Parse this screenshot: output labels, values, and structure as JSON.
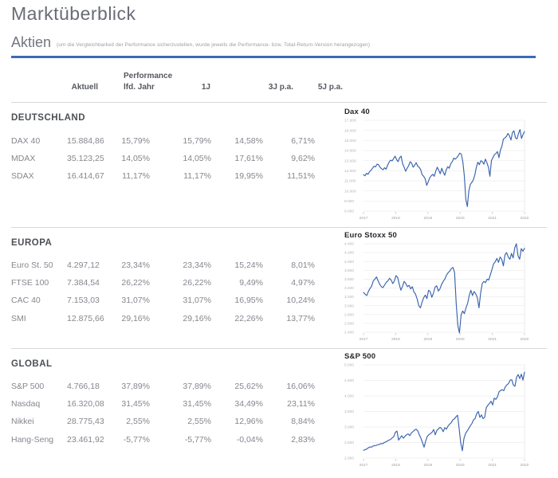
{
  "page": {
    "title": "Marktüberblick"
  },
  "aktien": {
    "title": "Aktien",
    "note": "(um die Vergleichbarkeit der Performance sicherzustellen, wurde jeweils die Performance- bzw. Total-Return-Version herangezogen)"
  },
  "table": {
    "group_header": "Performance",
    "columns": {
      "aktuell": "Aktuell",
      "lfd_jahr": "lfd. Jahr",
      "one_j": "1J",
      "three_j": "3J p.a.",
      "five_j": "5J p.a."
    }
  },
  "sections": [
    {
      "name": "DEUTSCHLAND",
      "rows": [
        {
          "label": "DAX 40",
          "values": [
            "15.884,86",
            "15,79%",
            "15,79%",
            "14,58%",
            "6,71%"
          ]
        },
        {
          "label": "MDAX",
          "values": [
            "35.123,25",
            "14,05%",
            "14,05%",
            "17,61%",
            "9,62%"
          ]
        },
        {
          "label": "SDAX",
          "values": [
            "16.414,67",
            "11,17%",
            "11,17%",
            "19,95%",
            "11,51%"
          ]
        }
      ]
    },
    {
      "name": "EUROPA",
      "rows": [
        {
          "label": "Euro St. 50",
          "values": [
            "4.297,12",
            "23,34%",
            "23,34%",
            "15,24%",
            "8,01%"
          ]
        },
        {
          "label": "FTSE 100",
          "values": [
            "7.384,54",
            "26,22%",
            "26,22%",
            "9,49%",
            "4,97%"
          ]
        },
        {
          "label": "CAC 40",
          "values": [
            "7.153,03",
            "31,07%",
            "31,07%",
            "16,95%",
            "10,24%"
          ]
        },
        {
          "label": "SMI",
          "values": [
            "12.875,66",
            "29,16%",
            "29,16%",
            "22,26%",
            "13,77%"
          ]
        }
      ]
    },
    {
      "name": "GLOBAL",
      "rows": [
        {
          "label": "S&P 500",
          "values": [
            "4.766,18",
            "37,89%",
            "37,89%",
            "25,62%",
            "16,06%"
          ]
        },
        {
          "label": "Nasdaq",
          "values": [
            "16.320,08",
            "31,45%",
            "31,45%",
            "34,49%",
            "23,11%"
          ]
        },
        {
          "label": "Nikkei",
          "values": [
            "28.775,43",
            "2,55%",
            "2,55%",
            "12,96%",
            "8,84%"
          ]
        },
        {
          "label": "Hang-Seng",
          "values": [
            "23.461,92",
            "-5,77%",
            "-5,77%",
            "-0,04%",
            "2,83%"
          ]
        }
      ]
    }
  ],
  "colors": {
    "accent_rule": "#3e6ab3",
    "chart_line": "#3a63ad",
    "grid_line": "#ececec",
    "separator": "#d8d8d8"
  },
  "chart_data": [
    {
      "type": "line",
      "title": "Dax 40",
      "legend_position": "none",
      "grid": "horizontal",
      "x_range": [
        "2017",
        "2022"
      ],
      "xticks": [
        "2017",
        "2018",
        "2019",
        "2020",
        "2021",
        "2022"
      ],
      "ylim": [
        8000,
        17000
      ],
      "yticks": [
        {
          "v": 8000,
          "l": "8.000"
        },
        {
          "v": 9000,
          "l": "9.000"
        },
        {
          "v": 10000,
          "l": "10.000"
        },
        {
          "v": 11000,
          "l": "11.000"
        },
        {
          "v": 12000,
          "l": "12.000"
        },
        {
          "v": 13000,
          "l": "13.000"
        },
        {
          "v": 14000,
          "l": "14.000"
        },
        {
          "v": 15000,
          "l": "15.000"
        },
        {
          "v": 16000,
          "l": "16.000"
        },
        {
          "v": 17000,
          "l": "17.000"
        }
      ],
      "values": [
        11600,
        11500,
        11750,
        11650,
        11900,
        12050,
        12250,
        12450,
        12380,
        12650,
        12600,
        12350,
        12200,
        12100,
        12300,
        12150,
        12550,
        12850,
        13050,
        12980,
        13200,
        13450,
        13100,
        12900,
        13300,
        13450,
        12700,
        12350,
        11950,
        12250,
        12500,
        12900,
        12750,
        12350,
        12550,
        12800,
        12450,
        12350,
        12100,
        11600,
        11450,
        11200,
        10550,
        10900,
        11300,
        11500,
        11650,
        11450,
        11950,
        12350,
        12050,
        11700,
        12250,
        11850,
        11550,
        12100,
        12400,
        12250,
        12700,
        12900,
        13250,
        13150,
        13300,
        13500,
        13750,
        13650,
        12900,
        11500,
        9160,
        8450,
        10000,
        10650,
        10850,
        11100,
        11600,
        12350,
        12850,
        12600,
        13000,
        12900,
        12650,
        13150,
        12800,
        12350,
        11450,
        13000,
        13300,
        13600,
        13700,
        13900,
        13300,
        14050,
        14450,
        15150,
        15250,
        15400,
        15700,
        15450,
        15050,
        15800,
        15950,
        15250,
        15150,
        15700,
        16080,
        15200,
        15600,
        15884
      ]
    },
    {
      "type": "line",
      "title": "Euro Stoxx 50",
      "legend_position": "none",
      "grid": "horizontal",
      "x_range": [
        "2017",
        "2022"
      ],
      "xticks": [
        "2017",
        "2018",
        "2019",
        "2020",
        "2021",
        "2022"
      ],
      "ylim": [
        2400,
        4400
      ],
      "yticks": [
        {
          "v": 2400,
          "l": "2.400"
        },
        {
          "v": 2600,
          "l": "2.600"
        },
        {
          "v": 2800,
          "l": "2.800"
        },
        {
          "v": 3000,
          "l": "3.000"
        },
        {
          "v": 3200,
          "l": "3.200"
        },
        {
          "v": 3400,
          "l": "3.400"
        },
        {
          "v": 3600,
          "l": "3.600"
        },
        {
          "v": 3800,
          "l": "3.800"
        },
        {
          "v": 4000,
          "l": "4.000"
        },
        {
          "v": 4200,
          "l": "4.200"
        },
        {
          "v": 4400,
          "l": "4.400"
        }
      ],
      "values": [
        3300,
        3260,
        3230,
        3320,
        3390,
        3440,
        3560,
        3600,
        3650,
        3560,
        3480,
        3430,
        3410,
        3470,
        3530,
        3560,
        3620,
        3580,
        3500,
        3560,
        3680,
        3640,
        3480,
        3350,
        3440,
        3550,
        3500,
        3430,
        3460,
        3380,
        3430,
        3310,
        3260,
        3150,
        3000,
        2950,
        3080,
        3180,
        3240,
        3160,
        3350,
        3320,
        3190,
        3280,
        3420,
        3450,
        3330,
        3380,
        3480,
        3550,
        3600,
        3690,
        3745,
        3780,
        3840,
        3865,
        3750,
        3050,
        2550,
        2385,
        2790,
        2880,
        2820,
        2950,
        3050,
        3230,
        3350,
        3230,
        3320,
        3270,
        3180,
        2950,
        3280,
        3500,
        3550,
        3520,
        3600,
        3580,
        3700,
        3820,
        3950,
        3990,
        4070,
        3980,
        4100,
        4050,
        3900,
        4150,
        4200,
        4100,
        4050,
        4180,
        4080,
        4310,
        4400,
        4130,
        4050,
        4290,
        4230,
        4298
      ]
    },
    {
      "type": "line",
      "title": "S&P 500",
      "legend_position": "none",
      "grid": "horizontal",
      "x_range": [
        "2017",
        "2022"
      ],
      "xticks": [
        "2017",
        "2018",
        "2019",
        "2020",
        "2021",
        "2022"
      ],
      "ylim": [
        2000,
        5000
      ],
      "yticks": [
        {
          "v": 2000,
          "l": "2.000"
        },
        {
          "v": 2500,
          "l": "2.500"
        },
        {
          "v": 3000,
          "l": "3.000"
        },
        {
          "v": 3500,
          "l": "3.500"
        },
        {
          "v": 4000,
          "l": "4.000"
        },
        {
          "v": 4500,
          "l": "4.500"
        },
        {
          "v": 5000,
          "l": "5.000"
        }
      ],
      "values": [
        2250,
        2270,
        2290,
        2330,
        2360,
        2350,
        2390,
        2400,
        2410,
        2430,
        2440,
        2470,
        2460,
        2500,
        2520,
        2550,
        2580,
        2600,
        2650,
        2690,
        2830,
        2870,
        2580,
        2650,
        2720,
        2640,
        2700,
        2750,
        2780,
        2720,
        2810,
        2850,
        2900,
        2930,
        2880,
        2750,
        2640,
        2500,
        2350,
        2550,
        2700,
        2750,
        2790,
        2830,
        2920,
        2750,
        2890,
        2940,
        2990,
        2950,
        2850,
        2980,
        2930,
        3030,
        3090,
        3140,
        3230,
        3260,
        3330,
        3380,
        2950,
        2480,
        2237,
        2630,
        2790,
        2870,
        2950,
        3040,
        3110,
        3230,
        3270,
        3430,
        3500,
        3310,
        3390,
        3270,
        3310,
        3620,
        3700,
        3756,
        3830,
        3710,
        3930,
        3890,
        3970,
        4130,
        4180,
        4200,
        4170,
        4300,
        4360,
        4400,
        4510,
        4520,
        4350,
        4310,
        4600,
        4690,
        4560,
        4700,
        4510,
        4766
      ]
    }
  ]
}
